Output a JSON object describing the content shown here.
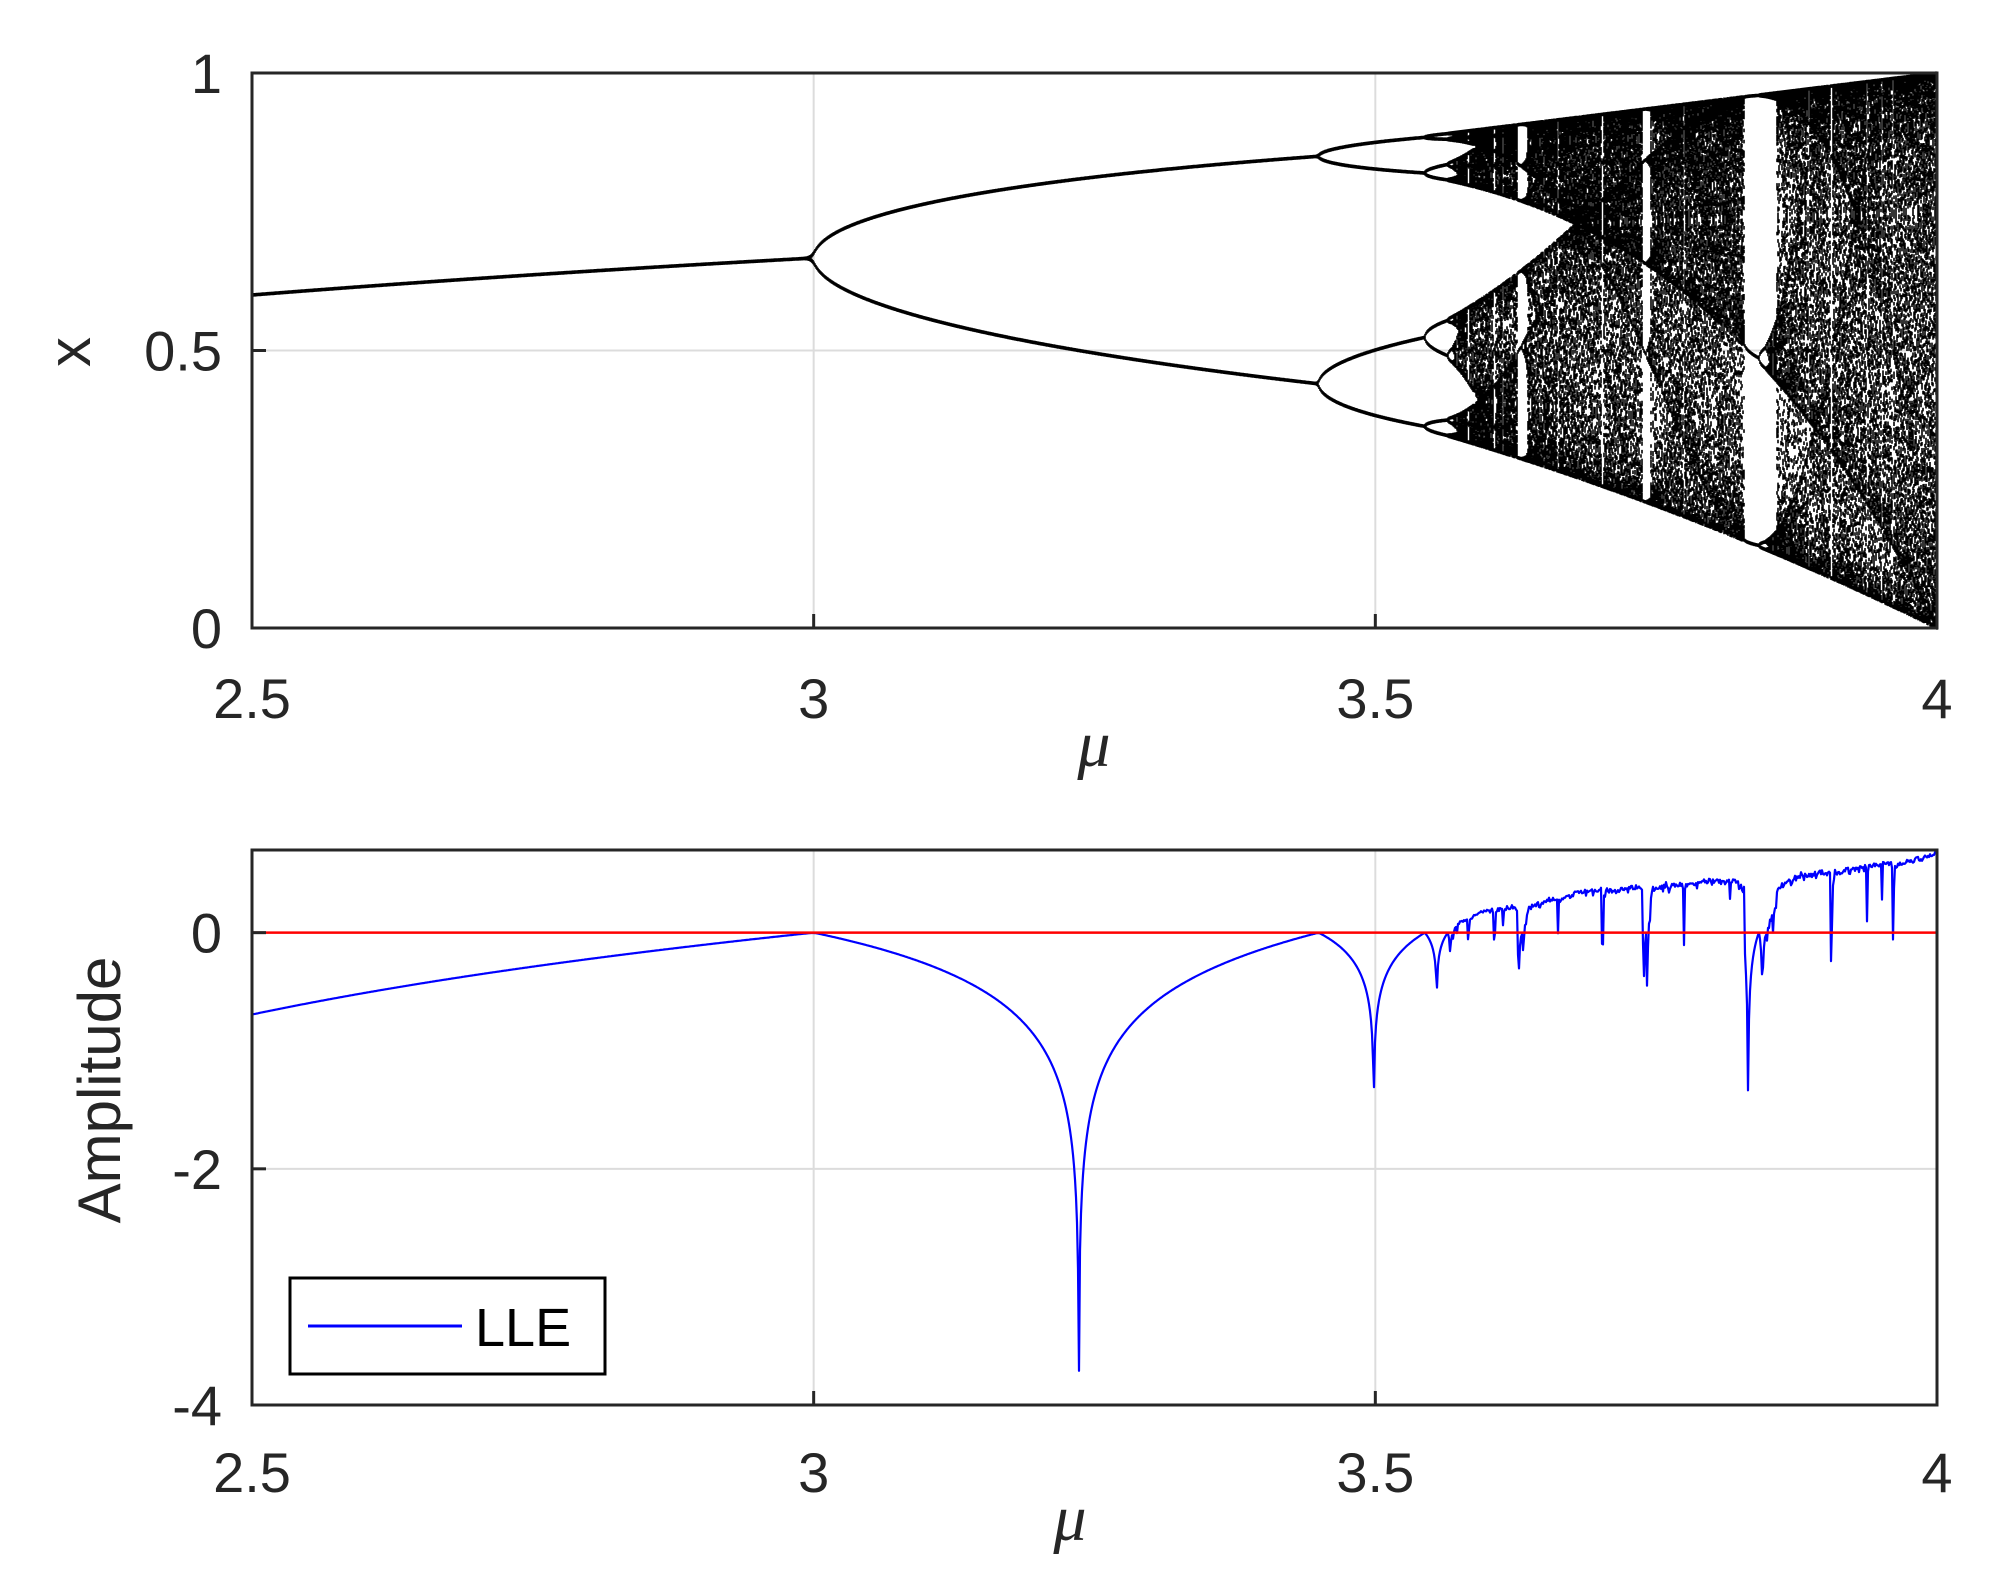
{
  "chart_data": [
    {
      "type": "scatter",
      "description_of_plot": "bifurcation diagram",
      "xlabel": "μ",
      "ylabel": "x",
      "xlim": [
        2.5,
        4
      ],
      "ylim": [
        0,
        1
      ],
      "xticks": [
        "2.5",
        "3",
        "3.5",
        "4"
      ],
      "yticks": [
        "0",
        "0.5",
        "1"
      ],
      "grid": true,
      "point_color": "#000000",
      "map": "logistic",
      "bifurcation_points": [
        3.0,
        3.449,
        3.544,
        3.564
      ],
      "chaos_onset": 3.5699,
      "periodic_windows": [
        3.627,
        3.739,
        3.8284
      ],
      "x_range_at_mu4": [
        0,
        1
      ]
    },
    {
      "type": "line",
      "xlabel": "μ",
      "ylabel": "Amplitude",
      "xlim": [
        2.5,
        4
      ],
      "ylim": [
        -4,
        0.7
      ],
      "xticks": [
        "2.5",
        "3",
        "3.5",
        "4"
      ],
      "yticks": [
        "-4",
        "-2",
        "0"
      ],
      "grid": true,
      "legend": {
        "position": "bottom-left",
        "entries": [
          "LLE"
        ]
      },
      "reference_line": {
        "y": 0,
        "color": "#ff0000"
      },
      "series": [
        {
          "name": "LLE",
          "color": "#0000ff",
          "x_start": 2.5,
          "x_end": 4.0,
          "values_at": [
            {
              "x": 2.5,
              "y": -0.69
            },
            {
              "x": 3.0,
              "y": 0.0
            },
            {
              "x": 3.2361,
              "y": -3.95
            },
            {
              "x": 3.449,
              "y": 0.0
            },
            {
              "x": 3.4985,
              "y": -1.6
            },
            {
              "x": 3.5545,
              "y": -0.52
            },
            {
              "x": 3.6275,
              "y": -0.57
            },
            {
              "x": 3.7385,
              "y": -0.55
            },
            {
              "x": 3.8284,
              "y": -1.3
            },
            {
              "x": 3.846,
              "y": -0.62
            },
            {
              "x": 4.0,
              "y": 0.69
            }
          ]
        }
      ]
    }
  ]
}
